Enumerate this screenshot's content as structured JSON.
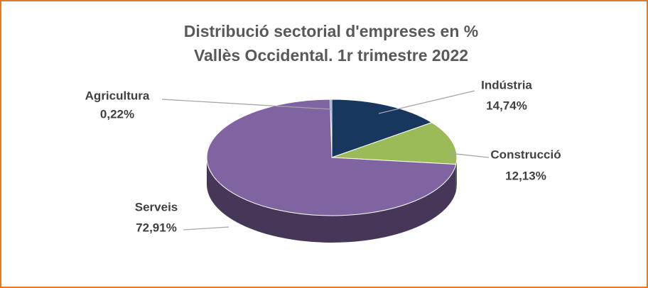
{
  "chart_data": {
    "type": "pie3d",
    "title": "Distribució sectorial d'empreses en %",
    "subtitle": "Vallès Occidental. 1r trimestre 2022",
    "categories": [
      "Agricultura",
      "Indústria",
      "Construcció",
      "Serveis"
    ],
    "values": [
      0.22,
      14.74,
      12.13,
      72.91
    ],
    "value_labels": [
      "0,22%",
      "14,74%",
      "12,13%",
      "72,91%"
    ],
    "colors": [
      "#4f81bd",
      "#17375e",
      "#9bbb59",
      "#8064a2"
    ]
  }
}
